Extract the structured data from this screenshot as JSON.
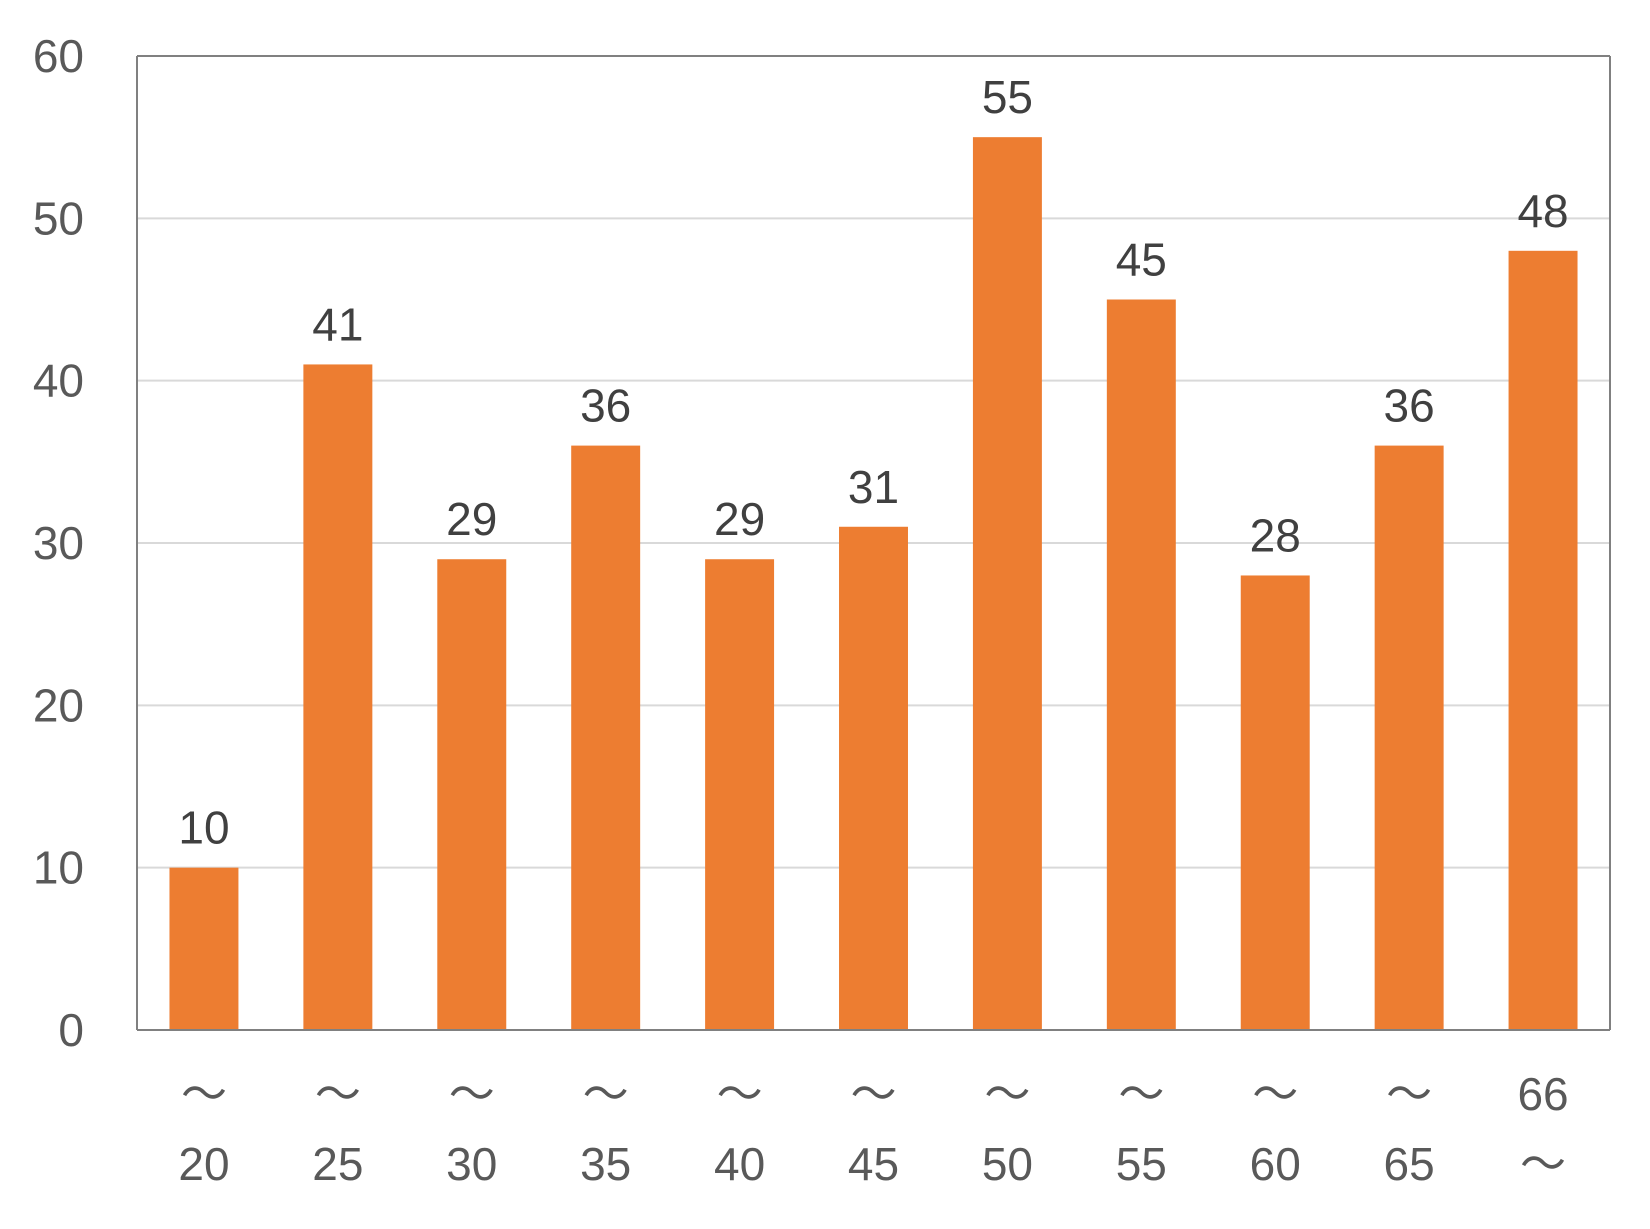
{
  "chart_data": {
    "type": "bar",
    "title": "",
    "xlabel": "",
    "ylabel": "",
    "categories": [
      [
        "～",
        "20"
      ],
      [
        "～",
        "25"
      ],
      [
        "～",
        "30"
      ],
      [
        "～",
        "35"
      ],
      [
        "～",
        "40"
      ],
      [
        "～",
        "45"
      ],
      [
        "～",
        "50"
      ],
      [
        "～",
        "55"
      ],
      [
        "～",
        "60"
      ],
      [
        "～",
        "65"
      ],
      [
        "66",
        "～"
      ]
    ],
    "values": [
      10,
      41,
      29,
      36,
      29,
      31,
      55,
      45,
      28,
      36,
      48
    ],
    "data_labels": [
      "10",
      "41",
      "29",
      "36",
      "29",
      "31",
      "55",
      "45",
      "28",
      "36",
      "48"
    ],
    "ylim": [
      0,
      60
    ],
    "yticks": [
      0,
      10,
      20,
      30,
      40,
      50,
      60
    ],
    "ytick_labels": [
      "0",
      "10",
      "20",
      "30",
      "40",
      "50",
      "60"
    ],
    "grid": true,
    "legend": "none",
    "bar_color": "#ED7D31",
    "grid_color": "#D9D9D9",
    "axis_color": "#808080"
  }
}
